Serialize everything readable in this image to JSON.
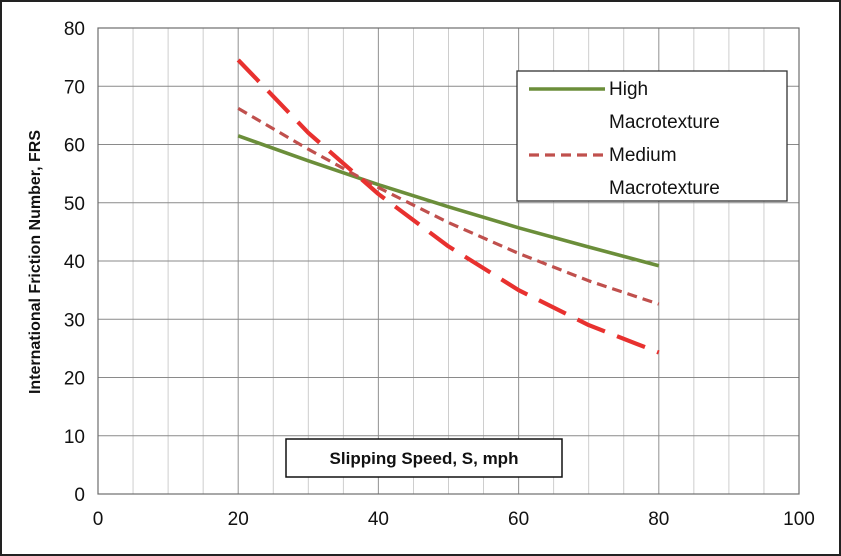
{
  "chart_data": {
    "type": "line",
    "title": "",
    "xlabel": "Slipping Speed, S, mph",
    "ylabel": "International Friction Number, FRS",
    "xlim": [
      0,
      100
    ],
    "ylim": [
      0,
      80
    ],
    "x_ticks": [
      0,
      20,
      40,
      60,
      80,
      100
    ],
    "y_ticks": [
      0,
      10,
      20,
      30,
      40,
      50,
      60,
      70,
      80
    ],
    "grid": true,
    "minor_x_step": 5,
    "legend_position": "top-right",
    "series": [
      {
        "name": "High Macrotexture",
        "legend_lines": [
          "High",
          "Macrotexture"
        ],
        "color": "#6b8e3a",
        "dash": "solid",
        "x": [
          20,
          30,
          40,
          50,
          60,
          70,
          80
        ],
        "y": [
          61.5,
          57.2,
          53.1,
          49.3,
          45.7,
          42.4,
          39.2
        ]
      },
      {
        "name": "Medium Macrotexture",
        "legend_lines": [
          "Medium",
          "Macrotexture"
        ],
        "color": "#c0504d",
        "dash": "short-dash",
        "x": [
          20,
          30,
          40,
          50,
          60,
          70,
          80
        ],
        "y": [
          66.2,
          59.2,
          52.6,
          46.6,
          41.3,
          36.6,
          32.6
        ]
      },
      {
        "name": "",
        "legend_lines": [],
        "color": "#e8312f",
        "dash": "long-dash",
        "x": [
          20,
          30,
          40,
          50,
          60,
          70,
          80
        ],
        "y": [
          74.5,
          62.0,
          51.5,
          42.5,
          35.0,
          29.0,
          24.3
        ]
      }
    ]
  }
}
